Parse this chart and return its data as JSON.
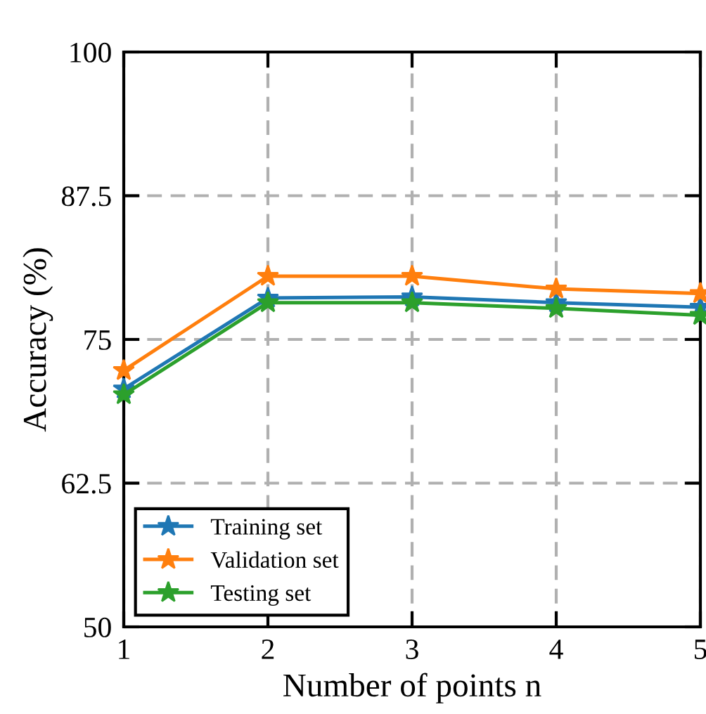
{
  "chart_data": {
    "type": "line",
    "xlabel": "Number of points n",
    "ylabel": "Accuracy (%)",
    "x": [
      1,
      2,
      3,
      4,
      5
    ],
    "xlim": [
      1,
      5
    ],
    "xticks": [
      1,
      2,
      3,
      4,
      5
    ],
    "ylim": [
      50,
      100
    ],
    "yticks": [
      50,
      62.5,
      75,
      87.5,
      100
    ],
    "grid": true,
    "legend": "bottom left",
    "marker": "star",
    "line_style": "solid",
    "series": [
      {
        "name": "Training set",
        "color": "#1f77b4",
        "values": [
          70.7,
          78.6,
          78.7,
          78.2,
          77.8
        ]
      },
      {
        "name": "Validation set",
        "color": "#ff7f0e",
        "values": [
          72.3,
          80.5,
          80.5,
          79.4,
          79.0
        ]
      },
      {
        "name": "Testing set",
        "color": "#2ca02c",
        "values": [
          70.2,
          78.2,
          78.2,
          77.7,
          77.1
        ]
      }
    ]
  }
}
